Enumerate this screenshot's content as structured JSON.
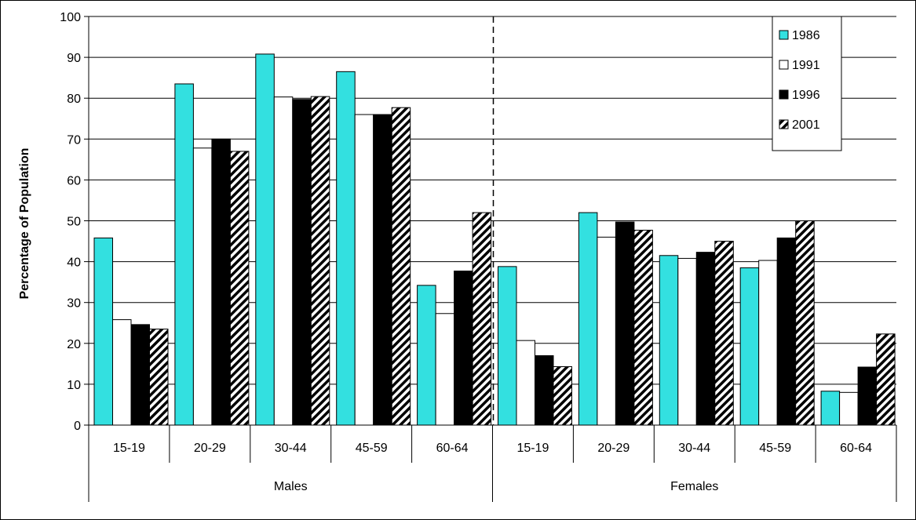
{
  "chart_data": {
    "type": "bar",
    "title": "",
    "xlabel": "",
    "ylabel": "Percentage of Population",
    "ylim": [
      0,
      100
    ],
    "yticks": [
      0,
      10,
      20,
      30,
      40,
      50,
      60,
      70,
      80,
      90,
      100
    ],
    "grid": true,
    "legend_position": "top-right",
    "groups": [
      "Males",
      "Females"
    ],
    "categories": [
      "15-19",
      "20-29",
      "30-44",
      "45-59",
      "60-64",
      "15-19",
      "20-29",
      "30-44",
      "45-59",
      "60-64"
    ],
    "series": [
      {
        "name": "1986",
        "color": "#33e0e0",
        "pattern": "solid",
        "values": [
          45.8,
          83.5,
          90.8,
          86.5,
          34.2,
          38.8,
          52.0,
          41.5,
          38.5,
          8.3
        ]
      },
      {
        "name": "1991",
        "color": "#ffffff",
        "pattern": "solid",
        "values": [
          25.8,
          67.8,
          80.3,
          76.0,
          27.3,
          20.7,
          46.0,
          40.8,
          40.3,
          8.0
        ]
      },
      {
        "name": "1996",
        "color": "#000000",
        "pattern": "solid",
        "values": [
          24.6,
          70.0,
          79.7,
          76.0,
          37.7,
          17.0,
          49.7,
          42.3,
          45.8,
          14.2
        ]
      },
      {
        "name": "2001",
        "color": "#000000",
        "pattern": "diagonal-stripes",
        "values": [
          23.5,
          67.0,
          80.4,
          77.7,
          52.0,
          14.3,
          47.7,
          45.0,
          50.0,
          22.3
        ]
      }
    ]
  }
}
